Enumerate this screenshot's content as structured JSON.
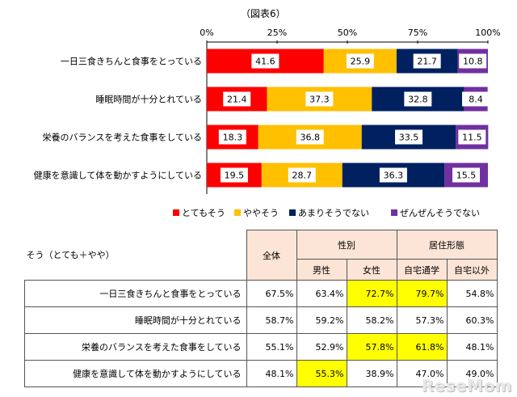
{
  "figure_label": "（図表6）",
  "chart_data": {
    "type": "bar",
    "orientation": "horizontal-stacked-100",
    "xticks": [
      "0%",
      "25%",
      "50%",
      "75%",
      "100%"
    ],
    "xlim": [
      0,
      100
    ],
    "categories": [
      "一日三食きちんと食事をとっている",
      "睡眠時間が十分とれている",
      "栄養のバランスを考えた食事をしている",
      "健康を意識して体を動かすようにしている"
    ],
    "series": [
      {
        "name": "とてもそう",
        "color": "#ff0000",
        "values": [
          41.6,
          21.4,
          18.3,
          19.5
        ]
      },
      {
        "name": "ややそう",
        "color": "#ffc000",
        "values": [
          25.9,
          37.3,
          36.8,
          28.7
        ]
      },
      {
        "name": "あまりそうでない",
        "color": "#002060",
        "values": [
          21.7,
          32.8,
          33.5,
          36.3
        ]
      },
      {
        "name": "ぜんぜんそうでない",
        "color": "#7030a0",
        "values": [
          10.8,
          8.4,
          11.5,
          15.5
        ]
      }
    ],
    "legend": "bottom",
    "grid": false
  },
  "table": {
    "caption": "そう（とても＋やや）",
    "col_overall": "全体",
    "group_gender": "性別",
    "group_residence": "居住形態",
    "sub_headers": [
      "男性",
      "女性",
      "自宅通学",
      "自宅以外"
    ],
    "highlight_color": "#ffff00",
    "rows": [
      {
        "label": "一日三食きちんと食事をとっている",
        "values": [
          "67.5%",
          "63.4%",
          "72.7%",
          "79.7%",
          "54.8%"
        ],
        "highlight": [
          false,
          false,
          true,
          true,
          false
        ]
      },
      {
        "label": "睡眠時間が十分とれている",
        "values": [
          "58.7%",
          "59.2%",
          "58.2%",
          "57.3%",
          "60.3%"
        ],
        "highlight": [
          false,
          false,
          false,
          false,
          false
        ]
      },
      {
        "label": "栄養のバランスを考えた食事をしている",
        "values": [
          "55.1%",
          "52.9%",
          "57.8%",
          "61.8%",
          "48.1%"
        ],
        "highlight": [
          false,
          false,
          true,
          true,
          false
        ]
      },
      {
        "label": "健康を意識して体を動かすようにしている",
        "values": [
          "48.1%",
          "55.3%",
          "38.9%",
          "47.0%",
          "49.0%"
        ],
        "highlight": [
          false,
          true,
          false,
          false,
          false
        ]
      }
    ]
  },
  "watermark": "ReseMom"
}
